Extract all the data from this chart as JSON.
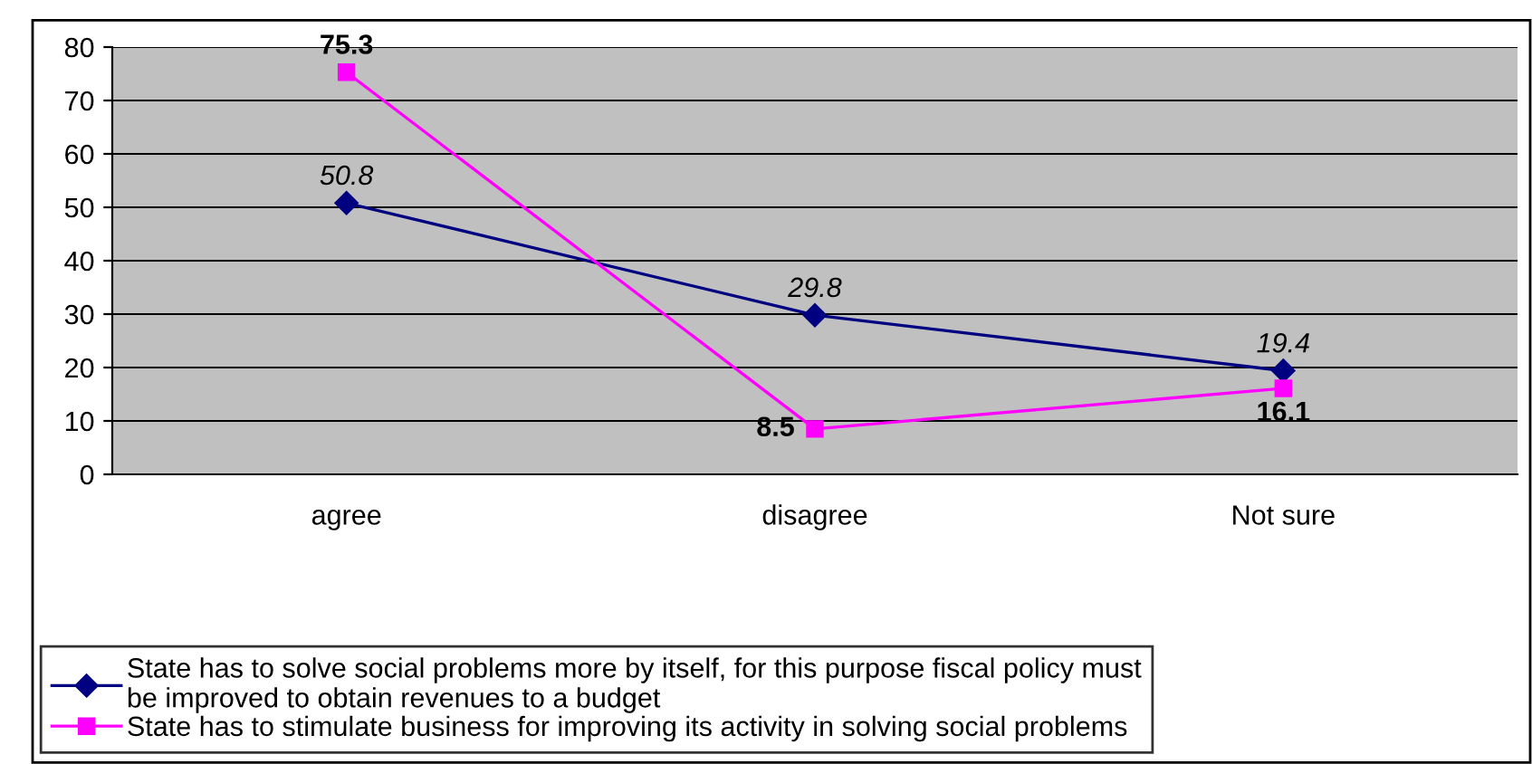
{
  "chart_data": {
    "type": "line",
    "categories": [
      "agree",
      "disagree",
      "Not sure"
    ],
    "series": [
      {
        "name": "State has to solve social problems more by itself, for this purpose fiscal policy must be improved to obtain revenues to a budget",
        "color": "#000080",
        "values": [
          50.8,
          29.8,
          19.4
        ],
        "marker": "diamond"
      },
      {
        "name": "State has to stimulate business for improving its activity in solving social problems",
        "color": "#ff00ff",
        "values": [
          75.3,
          8.5,
          16.1
        ],
        "marker": "square"
      }
    ],
    "ylim": [
      0,
      80
    ],
    "yticks": [
      0,
      10,
      20,
      30,
      40,
      50,
      60,
      70,
      80
    ],
    "grid": "y",
    "legend": "bottom",
    "data_labels": true
  }
}
